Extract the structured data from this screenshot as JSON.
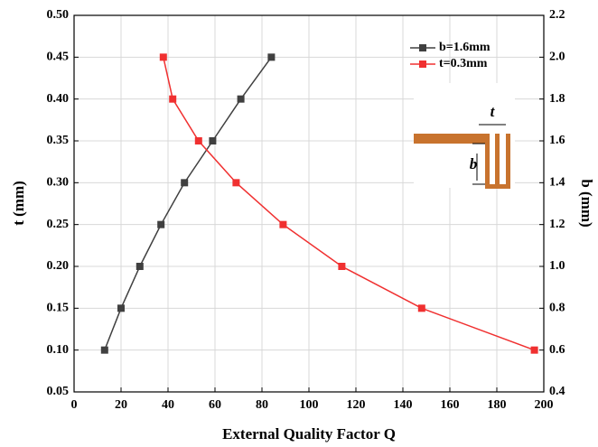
{
  "chart_data": {
    "type": "line",
    "xlabel": "External Quality Factor Q",
    "ylabel": "t (mm)",
    "y2label": "b (mm)",
    "annotations": [
      "t",
      "b"
    ],
    "xlim": [
      0,
      200
    ],
    "xticks": [
      0,
      20,
      40,
      60,
      80,
      100,
      120,
      140,
      160,
      180,
      200
    ],
    "ylim": [
      0.05,
      0.5
    ],
    "yticks": [
      0.05,
      {
        "value": 0.1,
        "label": "0.10"
      },
      0.15,
      {
        "value": 0.2,
        "label": "0.20"
      },
      0.25,
      {
        "value": 0.3,
        "label": "0.30"
      },
      0.35,
      {
        "value": 0.4,
        "label": "0.40"
      },
      0.45,
      {
        "value": 0.5,
        "label": "0.50"
      }
    ],
    "y2lim": [
      0.4,
      2.2
    ],
    "y2ticks": [
      0.4,
      0.6,
      0.8,
      {
        "value": 1.0,
        "label": "1.0"
      },
      1.2,
      1.4,
      1.6,
      1.8,
      {
        "value": 2.0,
        "label": "2.0"
      },
      2.2
    ],
    "grid": true,
    "legend": "upper right",
    "series": [
      {
        "name": "b=1.6mm",
        "color": "#404040",
        "x": [
          13,
          20,
          28,
          37,
          47,
          59,
          71,
          84
        ],
        "values": [
          0.1,
          0.15,
          0.2,
          0.25,
          0.3,
          0.35,
          0.4,
          0.45
        ]
      },
      {
        "name": "t=0.3mm",
        "color": "#f03030",
        "axis": "y2",
        "x": [
          38,
          42,
          53,
          69,
          89,
          114,
          148,
          196
        ],
        "values": [
          2.0,
          1.8,
          1.6,
          1.4,
          1.2,
          1.0,
          0.8,
          0.6
        ]
      }
    ]
  }
}
